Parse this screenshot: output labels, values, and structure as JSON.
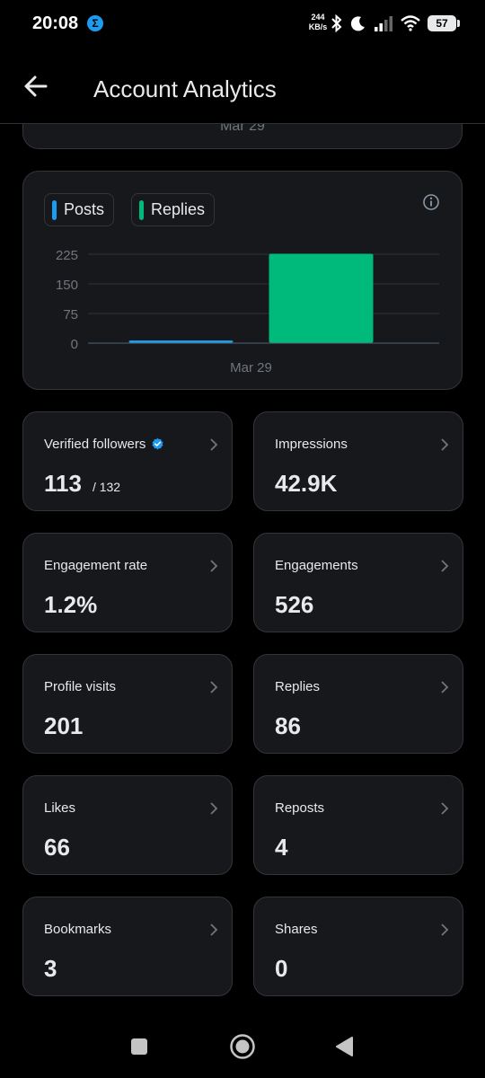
{
  "status_bar": {
    "time": "20:08",
    "app_badge": "Σ",
    "net_speed_value": "244",
    "net_speed_unit": "KB/s",
    "battery": "57"
  },
  "header": {
    "title": "Account Analytics"
  },
  "top_card": {
    "date_label": "Mar 29"
  },
  "chart_data": {
    "type": "bar",
    "categories": [
      "Mar 29"
    ],
    "series": [
      {
        "name": "Posts",
        "values": [
          2
        ],
        "color": "#1d9bf0"
      },
      {
        "name": "Replies",
        "values": [
          225
        ],
        "color": "#00ba7c"
      }
    ],
    "yticks": [
      "0",
      "75",
      "150",
      "225"
    ],
    "ytick_values": [
      0,
      75,
      150,
      225
    ],
    "ylim": [
      0,
      225
    ],
    "grid": true,
    "legend_position": "top-left"
  },
  "metrics": [
    {
      "label": "Verified followers",
      "value": "113",
      "sub": "/ 132",
      "verified": true
    },
    {
      "label": "Impressions",
      "value": "42.9K"
    },
    {
      "label": "Engagement rate",
      "value": "1.2%"
    },
    {
      "label": "Engagements",
      "value": "526"
    },
    {
      "label": "Profile visits",
      "value": "201"
    },
    {
      "label": "Replies",
      "value": "86"
    },
    {
      "label": "Likes",
      "value": "66"
    },
    {
      "label": "Reposts",
      "value": "4"
    },
    {
      "label": "Bookmarks",
      "value": "3"
    },
    {
      "label": "Shares",
      "value": "0"
    }
  ],
  "icons": {
    "back": "arrow-left-icon",
    "info": "info-icon",
    "chevron": "chevron-right-icon",
    "verified": "verified-badge-icon"
  },
  "colors": {
    "posts": "#1d9bf0",
    "replies": "#00ba7c",
    "card_bg": "#16181c",
    "border": "#333639"
  }
}
